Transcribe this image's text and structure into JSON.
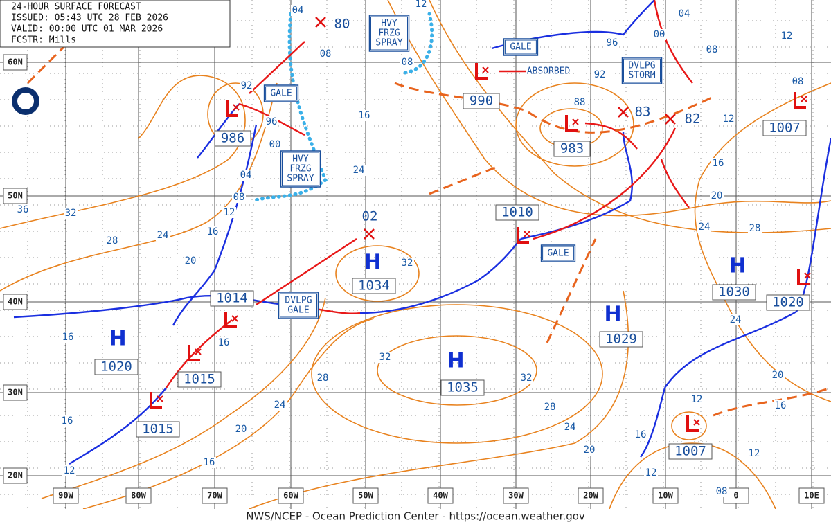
{
  "header": {
    "title": "24-HOUR SURFACE FORECAST",
    "issued": "ISSUED: 05:43 UTC 28 FEB 2026",
    "valid": "VALID:  00:00 UTC 01 MAR 2026",
    "forecaster": "FCSTR:  Mills"
  },
  "latitude_labels": [
    "60N",
    "50N",
    "40N",
    "30N",
    "20N"
  ],
  "longitude_labels": [
    "90W",
    "80W",
    "70W",
    "60W",
    "50W",
    "40W",
    "30W",
    "20W",
    "10W",
    "0",
    "10E"
  ],
  "highs": [
    {
      "symbol": "H",
      "pressure": "1034"
    },
    {
      "symbol": "H",
      "pressure": "1035"
    },
    {
      "symbol": "H",
      "pressure": "1029"
    },
    {
      "symbol": "H",
      "pressure": "1030"
    },
    {
      "symbol": "H",
      "pressure": "1020"
    }
  ],
  "lows": [
    {
      "pressure": "986"
    },
    {
      "pressure": "990"
    },
    {
      "pressure": "983"
    },
    {
      "pressure": "1010"
    },
    {
      "pressure": "1015"
    },
    {
      "pressure": "1015"
    },
    {
      "pressure": "1014"
    },
    {
      "pressure": "1007"
    },
    {
      "pressure": "1007"
    },
    {
      "pressure": "1020"
    }
  ],
  "dissipating_lows": [
    {
      "pressure": "80"
    },
    {
      "pressure": "83"
    },
    {
      "pressure": "82"
    },
    {
      "pressure": "02"
    }
  ],
  "isobar_labels": [
    "04",
    "08",
    "12",
    "08",
    "04",
    "00",
    "08",
    "12",
    "96",
    "92",
    "88",
    "92",
    "96",
    "00",
    "04",
    "08",
    "12",
    "16",
    "20",
    "24",
    "28",
    "32",
    "36",
    "16",
    "24",
    "32",
    "12",
    "16",
    "20",
    "24",
    "28",
    "24",
    "20",
    "16",
    "12",
    "12",
    "16",
    "12",
    "08",
    "16",
    "16",
    "16",
    "12",
    "16",
    "20",
    "24",
    "28",
    "32",
    "32",
    "28",
    "24",
    "20",
    "08"
  ],
  "annotations": [
    {
      "lines": [
        "GALE"
      ]
    },
    {
      "lines": [
        "HVY",
        "FRZG",
        "SPRAY"
      ]
    },
    {
      "lines": [
        "HVY",
        "FRZG",
        "SPRAY"
      ]
    },
    {
      "lines": [
        "GALE"
      ]
    },
    {
      "lines": [
        "ABSORBED"
      ]
    },
    {
      "lines": [
        "DVLPG",
        "STORM"
      ]
    },
    {
      "lines": [
        "DVLPG",
        "GALE"
      ]
    },
    {
      "lines": [
        "GALE"
      ]
    }
  ],
  "footer": "NWS/NCEP - Ocean Prediction Center - https://ocean.weather.gov"
}
